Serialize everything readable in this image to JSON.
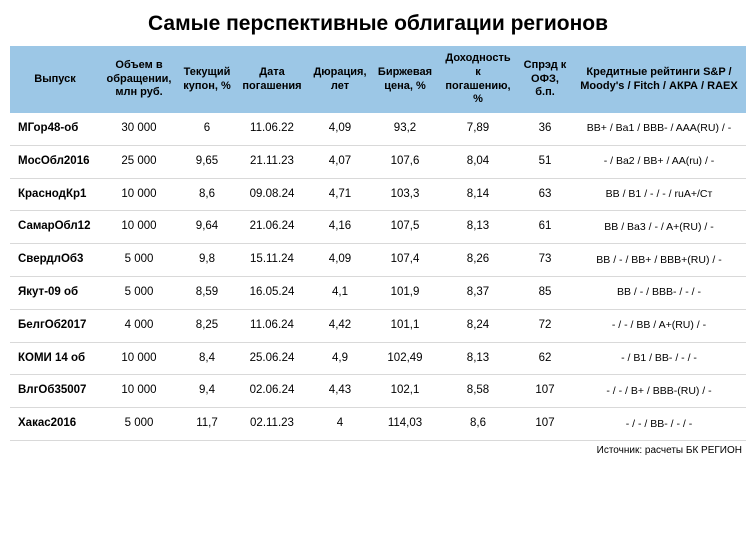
{
  "title": "Самые перспективные облигации регионов",
  "source": "Источник: расчеты БК РЕГИОН",
  "colors": {
    "header_bg": "#9cc7e6",
    "row_border": "#d9d9d9",
    "text": "#000000",
    "background": "#ffffff"
  },
  "columns": [
    {
      "key": "issue",
      "label": "Выпуск"
    },
    {
      "key": "volume",
      "label": "Объем в обращении, млн руб."
    },
    {
      "key": "coupon",
      "label": "Текущий купон, %"
    },
    {
      "key": "date",
      "label": "Дата погашения"
    },
    {
      "key": "dur",
      "label": "Дюрация, лет"
    },
    {
      "key": "price",
      "label": "Биржевая цена, %"
    },
    {
      "key": "yield",
      "label": "Доходность к погашению, %"
    },
    {
      "key": "spread",
      "label": "Спрэд к ОФЗ, б.п."
    },
    {
      "key": "rating",
      "label": "Кредитные рейтинги S&P / Moody's / Fitch / АКРА / RAEX"
    }
  ],
  "rows": [
    {
      "issue": "МГор48-об",
      "volume": "30 000",
      "coupon": "6",
      "date": "11.06.22",
      "dur": "4,09",
      "price": "93,2",
      "yield": "7,89",
      "spread": "36",
      "rating": "BB+ / Ba1 / BBB- / AAA(RU) / -"
    },
    {
      "issue": "МосОбл2016",
      "volume": "25 000",
      "coupon": "9,65",
      "date": "21.11.23",
      "dur": "4,07",
      "price": "107,6",
      "yield": "8,04",
      "spread": "51",
      "rating": "- / Ba2 / BB+ / AA(ru) / -"
    },
    {
      "issue": "КраснодКр1",
      "volume": "10 000",
      "coupon": "8,6",
      "date": "09.08.24",
      "dur": "4,71",
      "price": "103,3",
      "yield": "8,14",
      "spread": "63",
      "rating": "BB / B1 / - / - / ruA+/Ст"
    },
    {
      "issue": "СамарОбл12",
      "volume": "10 000",
      "coupon": "9,64",
      "date": "21.06.24",
      "dur": "4,16",
      "price": "107,5",
      "yield": "8,13",
      "spread": "61",
      "rating": "BB / Ba3 / - / A+(RU) / -"
    },
    {
      "issue": "СвердлОб3",
      "volume": "5 000",
      "coupon": "9,8",
      "date": "15.11.24",
      "dur": "4,09",
      "price": "107,4",
      "yield": "8,26",
      "spread": "73",
      "rating": "BB / - / BB+ / BBB+(RU) / -"
    },
    {
      "issue": "Якут-09 об",
      "volume": "5 000",
      "coupon": "8,59",
      "date": "16.05.24",
      "dur": "4,1",
      "price": "101,9",
      "yield": "8,37",
      "spread": "85",
      "rating": "BB / - / BBB- / - / -"
    },
    {
      "issue": "БелгОб2017",
      "volume": "4 000",
      "coupon": "8,25",
      "date": "11.06.24",
      "dur": "4,42",
      "price": "101,1",
      "yield": "8,24",
      "spread": "72",
      "rating": "- / - / BB / A+(RU) / -"
    },
    {
      "issue": "КОМИ 14 об",
      "volume": "10 000",
      "coupon": "8,4",
      "date": "25.06.24",
      "dur": "4,9",
      "price": "102,49",
      "yield": "8,13",
      "spread": "62",
      "rating": "- / B1 / BB- / - / -"
    },
    {
      "issue": "ВлгОб35007",
      "volume": "10 000",
      "coupon": "9,4",
      "date": "02.06.24",
      "dur": "4,43",
      "price": "102,1",
      "yield": "8,58",
      "spread": "107",
      "rating": "- / - / B+ / BBB-(RU) / -"
    },
    {
      "issue": "Хакас2016",
      "volume": "5 000",
      "coupon": "11,7",
      "date": "02.11.23",
      "dur": "4",
      "price": "114,03",
      "yield": "8,6",
      "spread": "107",
      "rating": "- / - / BB- / - / -"
    }
  ]
}
